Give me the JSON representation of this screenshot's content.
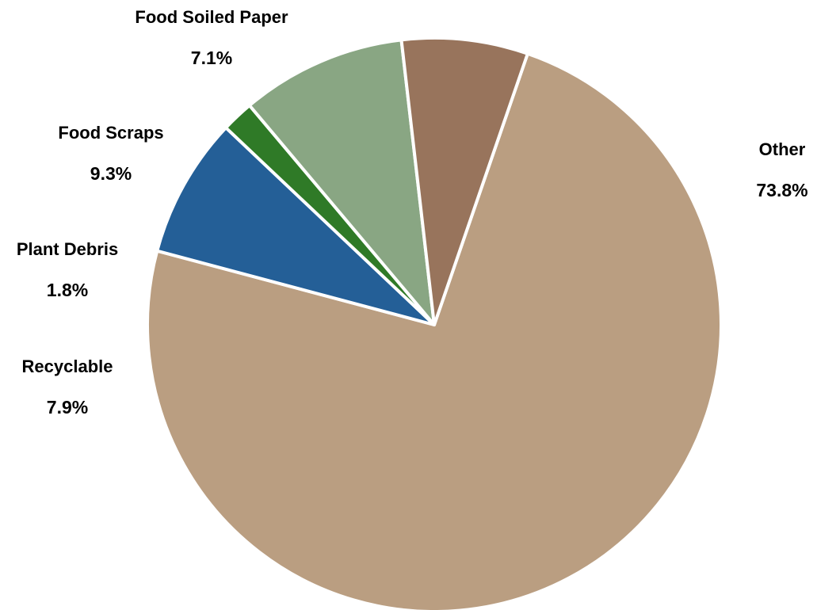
{
  "chart_data": {
    "type": "pie",
    "title": "",
    "start_angle_deg": 19,
    "direction": "clockwise",
    "slices": [
      {
        "label": "Other",
        "value": 73.8,
        "display": "73.8%",
        "color": "#BA9E81"
      },
      {
        "label": "Recyclable",
        "value": 7.9,
        "display": "7.9%",
        "color": "#245F97"
      },
      {
        "label": "Plant Debris",
        "value": 1.8,
        "display": "1.8%",
        "color": "#2F7A27"
      },
      {
        "label": "Food Scraps",
        "value": 9.3,
        "display": "9.3%",
        "color": "#89A683"
      },
      {
        "label": "Food Soiled Paper",
        "value": 7.1,
        "display": "7.1%",
        "color": "#98745C"
      }
    ]
  }
}
